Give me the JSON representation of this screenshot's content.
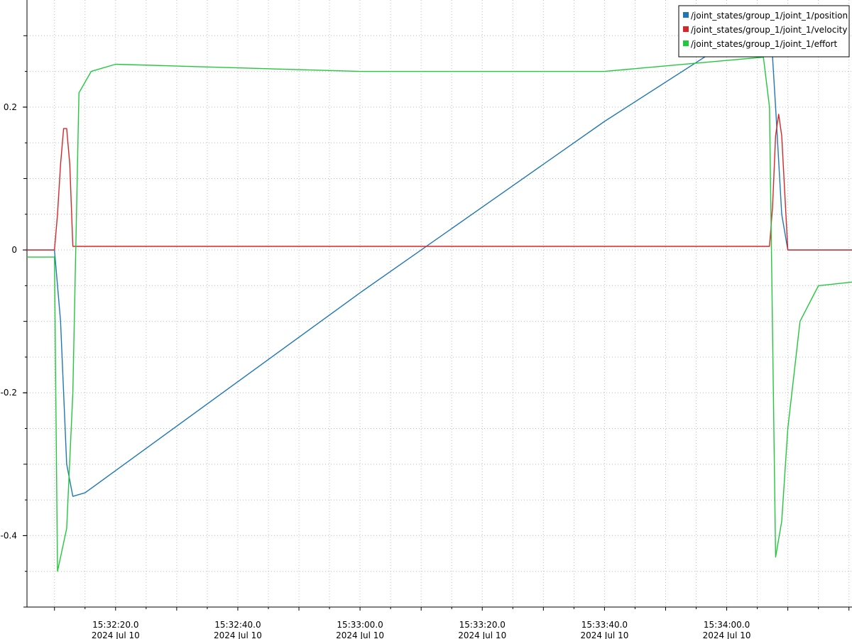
{
  "chart_data": {
    "type": "line",
    "title": "",
    "xlabel": "",
    "ylabel": "",
    "xlim": [
      "15:32:05.5",
      "15:34:20.5"
    ],
    "ylim": [
      -0.5,
      0.35
    ],
    "grid": true,
    "legend_position": "top-right",
    "y_ticks": [
      {
        "value": -0.4,
        "label": "-0.4"
      },
      {
        "value": -0.2,
        "label": "-0.2"
      },
      {
        "value": 0,
        "label": "0"
      },
      {
        "value": 0.2,
        "label": "0.2"
      }
    ],
    "x_ticks": [
      {
        "value": "15:32:20.0",
        "time": "15:32:20.0",
        "date": "2024 Jul 10"
      },
      {
        "value": "15:32:40.0",
        "time": "15:32:40.0",
        "date": "2024 Jul 10"
      },
      {
        "value": "15:33:00.0",
        "time": "15:33:00.0",
        "date": "2024 Jul 10"
      },
      {
        "value": "15:33:20.0",
        "time": "15:33:20.0",
        "date": "2024 Jul 10"
      },
      {
        "value": "15:33:40.0",
        "time": "15:33:40.0",
        "date": "2024 Jul 10"
      },
      {
        "value": "15:34:00.0",
        "time": "15:34:00.0",
        "date": "2024 Jul 10"
      }
    ],
    "series": [
      {
        "name": "/joint_states/group_1/joint_1/position",
        "color": "#1f77b4",
        "x": [
          "15:32:05.5",
          "15:32:10.0",
          "15:32:11.0",
          "15:32:12.0",
          "15:32:13.0",
          "15:32:15.0",
          "15:33:00.0",
          "15:33:20.0",
          "15:33:40.0",
          "15:34:00.0",
          "15:34:04.0",
          "15:34:07.0",
          "15:34:08.0",
          "15:34:09.0",
          "15:34:10.0",
          "15:34:20.5"
        ],
        "y": [
          0,
          0,
          -0.1,
          -0.3,
          -0.345,
          -0.34,
          -0.06,
          0.06,
          0.18,
          0.29,
          0.31,
          0.34,
          0.2,
          0.05,
          0,
          0
        ]
      },
      {
        "name": "/joint_states/group_1/joint_1/velocity",
        "color": "#d62728",
        "x": [
          "15:32:05.5",
          "15:32:10.0",
          "15:32:10.5",
          "15:32:11.0",
          "15:32:11.5",
          "15:32:12.0",
          "15:32:12.5",
          "15:32:13.0",
          "15:34:07.0",
          "15:34:07.5",
          "15:34:08.0",
          "15:34:08.5",
          "15:34:09.0",
          "15:34:09.5",
          "15:34:10.0",
          "15:34:20.5"
        ],
        "y": [
          0,
          0,
          0.05,
          0.12,
          0.17,
          0.17,
          0.12,
          0.005,
          0.005,
          0.06,
          0.16,
          0.19,
          0.16,
          0.08,
          0,
          0
        ]
      },
      {
        "name": "/joint_states/group_1/joint_1/effort",
        "color": "#22c83c",
        "x": [
          "15:32:05.5",
          "15:32:10.0",
          "15:32:10.5",
          "15:32:11.0",
          "15:32:12.0",
          "15:32:13.0",
          "15:32:14.0",
          "15:32:16.0",
          "15:32:20.0",
          "15:33:00.0",
          "15:33:40.0",
          "15:34:06.0",
          "15:34:07.0",
          "15:34:08.0",
          "15:34:09.0",
          "15:34:10.0",
          "15:34:12.0",
          "15:34:15.0",
          "15:34:20.5"
        ],
        "y": [
          -0.01,
          -0.01,
          -0.45,
          -0.43,
          -0.39,
          -0.2,
          0.22,
          0.25,
          0.26,
          0.25,
          0.25,
          0.27,
          0.2,
          -0.43,
          -0.38,
          -0.25,
          -0.1,
          -0.05,
          -0.045
        ]
      }
    ]
  },
  "legend": {
    "items": [
      {
        "label": "/joint_states/group_1/joint_1/position",
        "color": "#1f77b4"
      },
      {
        "label": "/joint_states/group_1/joint_1/velocity",
        "color": "#d62728"
      },
      {
        "label": "/joint_states/group_1/joint_1/effort",
        "color": "#22c83c"
      }
    ]
  }
}
